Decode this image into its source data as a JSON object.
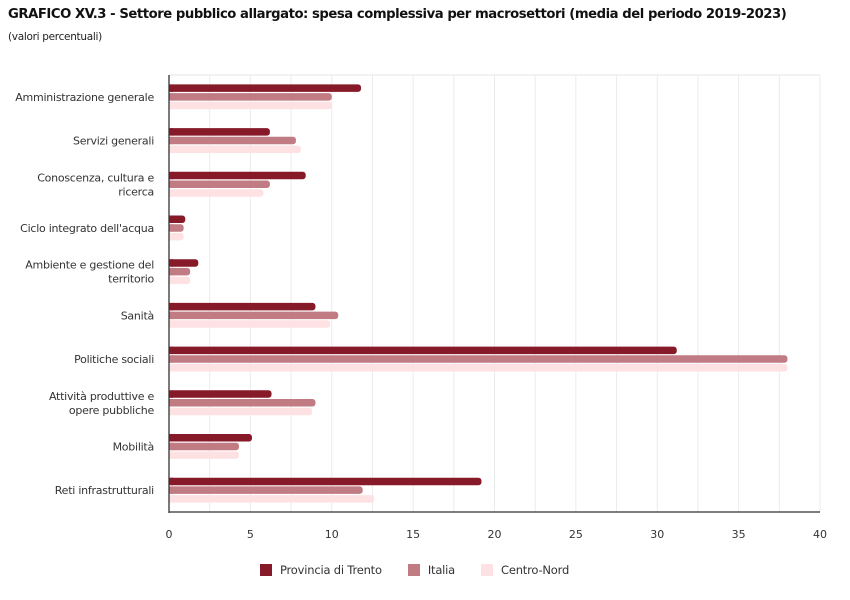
{
  "header": {
    "title": "GRAFICO XV.3 - Settore pubblico allargato: spesa complessiva per macrosettori (media del periodo 2019-2023)",
    "subtitle": "(valori percentuali)"
  },
  "chart_data": {
    "type": "bar",
    "orientation": "horizontal",
    "title": "GRAFICO XV.3 - Settore pubblico allargato: spesa complessiva per macrosettori (media del periodo 2019-2023)",
    "subtitle": "(valori percentuali)",
    "xlabel": "",
    "ylabel": "",
    "xlim": [
      0,
      40
    ],
    "xticks": [
      0,
      5,
      10,
      15,
      20,
      25,
      30,
      35,
      40
    ],
    "grid": true,
    "legend_position": "bottom",
    "categories": [
      [
        "Amministrazione generale"
      ],
      [
        "Servizi generali"
      ],
      [
        "Conoscenza, cultura e",
        "ricerca"
      ],
      [
        "Ciclo integrato dell'acqua"
      ],
      [
        "Ambiente e gestione del",
        "territorio"
      ],
      [
        "Sanità"
      ],
      [
        "Politiche sociali"
      ],
      [
        "Attività produttive e",
        "opere pubbliche"
      ],
      [
        "Mobilità"
      ],
      [
        "Reti infrastrutturali"
      ]
    ],
    "series": [
      {
        "name": "Provincia di Trento",
        "color": "#861a28",
        "values": [
          11.8,
          6.2,
          8.4,
          1.0,
          1.8,
          9.0,
          31.2,
          6.3,
          5.1,
          19.2
        ]
      },
      {
        "name": "Italia",
        "color": "#c07b83",
        "values": [
          10.0,
          7.8,
          6.2,
          0.9,
          1.3,
          10.4,
          38.0,
          9.0,
          4.3,
          11.9
        ]
      },
      {
        "name": "Centro-Nord",
        "color": "#fde1e3",
        "values": [
          10.0,
          8.1,
          5.8,
          0.9,
          1.3,
          9.9,
          38.0,
          8.8,
          4.3,
          12.6
        ]
      }
    ]
  }
}
